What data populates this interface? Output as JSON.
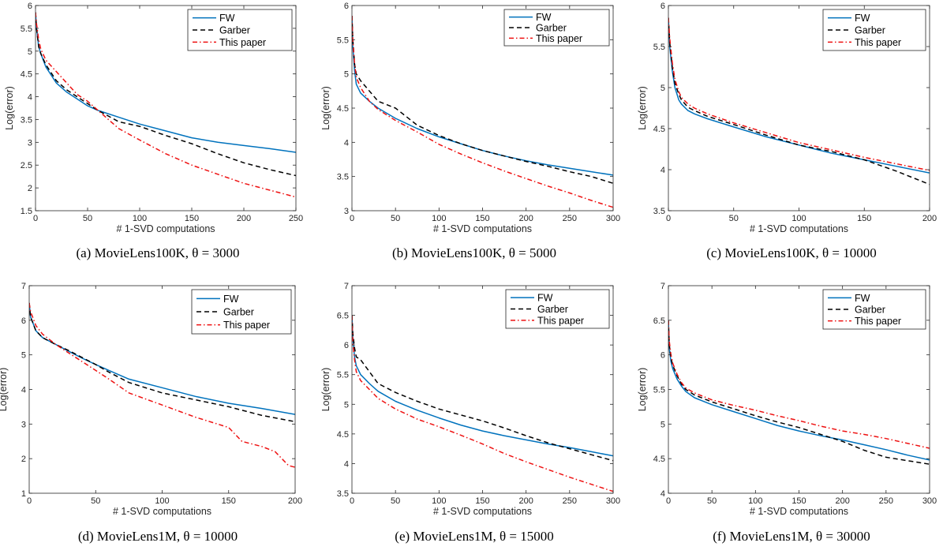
{
  "figure_captions": [
    "(a) MovieLens100K, θ = 3000",
    "(b) MovieLens100K, θ = 5000",
    "(c) MovieLens100K, θ = 10000",
    "(d) MovieLens1M, θ = 10000",
    "(e) MovieLens1M, θ = 15000",
    "(f) MovieLens1M, θ = 30000"
  ],
  "colors": {
    "FW": "#0072BD",
    "Garber": "#000000",
    "This paper": "#EE1111"
  },
  "chart_data": [
    {
      "type": "line",
      "caption": {
        "prefix": "(a) ",
        "name": "MovieLens100K",
        "theta": "3000"
      },
      "xlabel": "# 1-SVD computations",
      "ylabel": "Log(error)",
      "xlim": [
        0,
        250
      ],
      "ylim": [
        1.5,
        6
      ],
      "xticks": [
        0,
        50,
        100,
        150,
        200,
        250
      ],
      "yticks": [
        1.5,
        2,
        2.5,
        3,
        3.5,
        4,
        4.5,
        5,
        5.5,
        6
      ],
      "grid": false,
      "legend": "top-right",
      "series": [
        {
          "name": "FW",
          "style": "solid",
          "x": [
            0,
            1,
            3,
            5,
            10,
            20,
            30,
            40,
            50,
            60,
            80,
            100,
            125,
            150,
            175,
            200,
            225,
            250
          ],
          "y": [
            5.85,
            5.5,
            5.1,
            4.95,
            4.65,
            4.3,
            4.1,
            3.95,
            3.8,
            3.7,
            3.55,
            3.4,
            3.25,
            3.1,
            3.0,
            2.93,
            2.86,
            2.78
          ]
        },
        {
          "name": "Garber",
          "style": "dashed",
          "x": [
            0,
            1,
            3,
            5,
            10,
            20,
            30,
            40,
            50,
            60,
            80,
            100,
            125,
            150,
            175,
            200,
            225,
            250
          ],
          "y": [
            5.85,
            5.5,
            5.1,
            4.95,
            4.7,
            4.35,
            4.15,
            4.0,
            3.85,
            3.7,
            3.45,
            3.35,
            3.15,
            2.97,
            2.75,
            2.55,
            2.4,
            2.27
          ]
        },
        {
          "name": "This paper",
          "style": "dashdot",
          "x": [
            0,
            1,
            3,
            5,
            10,
            20,
            30,
            40,
            50,
            60,
            80,
            100,
            125,
            150,
            175,
            200,
            225,
            250
          ],
          "y": [
            5.85,
            5.6,
            5.25,
            5.05,
            4.8,
            4.55,
            4.3,
            4.05,
            3.9,
            3.7,
            3.3,
            3.05,
            2.75,
            2.5,
            2.3,
            2.1,
            1.95,
            1.8
          ]
        }
      ]
    },
    {
      "type": "line",
      "caption": {
        "prefix": "(b) ",
        "name": "MovieLens100K",
        "theta": "5000"
      },
      "xlabel": "# 1-SVD computations",
      "ylabel": "Log(error)",
      "xlim": [
        0,
        300
      ],
      "ylim": [
        3,
        6
      ],
      "xticks": [
        0,
        50,
        100,
        150,
        200,
        250,
        300
      ],
      "yticks": [
        3,
        3.5,
        4,
        4.5,
        5,
        5.5,
        6
      ],
      "grid": false,
      "legend": "top-right",
      "series": [
        {
          "name": "FW",
          "style": "solid",
          "x": [
            0,
            1,
            3,
            5,
            10,
            20,
            30,
            50,
            75,
            100,
            125,
            150,
            175,
            200,
            225,
            250,
            275,
            300
          ],
          "y": [
            5.85,
            5.4,
            5.05,
            4.85,
            4.72,
            4.6,
            4.5,
            4.35,
            4.2,
            4.08,
            3.98,
            3.88,
            3.8,
            3.73,
            3.67,
            3.62,
            3.57,
            3.52
          ]
        },
        {
          "name": "Garber",
          "style": "dashed",
          "x": [
            0,
            1,
            3,
            5,
            10,
            20,
            30,
            50,
            75,
            100,
            125,
            150,
            175,
            200,
            225,
            250,
            275,
            300
          ],
          "y": [
            5.85,
            5.5,
            5.15,
            5.0,
            4.9,
            4.75,
            4.6,
            4.5,
            4.25,
            4.1,
            3.98,
            3.88,
            3.8,
            3.72,
            3.65,
            3.57,
            3.5,
            3.4
          ]
        },
        {
          "name": "This paper",
          "style": "dashdot",
          "x": [
            0,
            1,
            3,
            5,
            10,
            20,
            30,
            50,
            75,
            100,
            125,
            150,
            175,
            200,
            225,
            250,
            275,
            300
          ],
          "y": [
            5.85,
            5.5,
            5.15,
            4.95,
            4.8,
            4.6,
            4.48,
            4.32,
            4.15,
            3.97,
            3.83,
            3.7,
            3.58,
            3.47,
            3.36,
            3.26,
            3.15,
            3.05
          ]
        }
      ]
    },
    {
      "type": "line",
      "caption": {
        "prefix": "(c) ",
        "name": "MovieLens100K",
        "theta": "10000"
      },
      "xlabel": "# 1-SVD computations",
      "ylabel": "Log(error)",
      "xlim": [
        0,
        200
      ],
      "ylim": [
        3.5,
        6
      ],
      "xticks": [
        0,
        50,
        100,
        150,
        200
      ],
      "yticks": [
        3.5,
        4,
        4.5,
        5,
        5.5,
        6
      ],
      "grid": false,
      "legend": "top-right",
      "series": [
        {
          "name": "FW",
          "style": "solid",
          "x": [
            0,
            1,
            3,
            5,
            8,
            10,
            15,
            20,
            30,
            50,
            75,
            100,
            125,
            150,
            175,
            200
          ],
          "y": [
            5.85,
            5.5,
            5.2,
            5.0,
            4.85,
            4.8,
            4.72,
            4.68,
            4.62,
            4.52,
            4.4,
            4.3,
            4.2,
            4.12,
            4.04,
            3.96
          ]
        },
        {
          "name": "Garber",
          "style": "dashed",
          "x": [
            0,
            1,
            3,
            5,
            8,
            10,
            15,
            20,
            30,
            50,
            75,
            100,
            125,
            150,
            175,
            200
          ],
          "y": [
            5.85,
            5.55,
            5.25,
            5.05,
            4.92,
            4.85,
            4.76,
            4.72,
            4.65,
            4.55,
            4.42,
            4.3,
            4.22,
            4.12,
            3.98,
            3.82
          ]
        },
        {
          "name": "This paper",
          "style": "dashdot",
          "x": [
            0,
            1,
            3,
            5,
            8,
            10,
            15,
            20,
            30,
            50,
            75,
            100,
            125,
            150,
            175,
            200
          ],
          "y": [
            5.85,
            5.6,
            5.3,
            5.1,
            4.95,
            4.88,
            4.8,
            4.75,
            4.68,
            4.57,
            4.45,
            4.33,
            4.24,
            4.15,
            4.07,
            3.99
          ]
        }
      ]
    },
    {
      "type": "line",
      "caption": {
        "prefix": "(d) ",
        "name": "MovieLens1M",
        "theta": "10000"
      },
      "xlabel": "# 1-SVD computations",
      "ylabel": "Log(error)",
      "xlim": [
        0,
        200
      ],
      "ylim": [
        1,
        7
      ],
      "xticks": [
        0,
        50,
        100,
        150,
        200
      ],
      "yticks": [
        1,
        2,
        3,
        4,
        5,
        6,
        7
      ],
      "grid": false,
      "legend": "top-right",
      "series": [
        {
          "name": "FW",
          "style": "solid",
          "x": [
            0,
            1,
            3,
            5,
            10,
            20,
            30,
            40,
            50,
            60,
            75,
            100,
            125,
            150,
            175,
            200
          ],
          "y": [
            6.5,
            6.1,
            5.9,
            5.7,
            5.5,
            5.3,
            5.1,
            4.9,
            4.72,
            4.55,
            4.3,
            4.05,
            3.8,
            3.6,
            3.45,
            3.28
          ]
        },
        {
          "name": "Garber",
          "style": "dashed",
          "x": [
            0,
            1,
            3,
            5,
            10,
            20,
            30,
            40,
            50,
            60,
            75,
            100,
            125,
            150,
            175,
            200
          ],
          "y": [
            6.5,
            6.1,
            5.9,
            5.7,
            5.5,
            5.3,
            5.12,
            4.92,
            4.72,
            4.5,
            4.2,
            3.9,
            3.7,
            3.5,
            3.25,
            3.07
          ]
        },
        {
          "name": "This paper",
          "style": "dashdot",
          "x": [
            0,
            1,
            3,
            5,
            10,
            20,
            30,
            40,
            50,
            60,
            75,
            100,
            125,
            150,
            160,
            175,
            185,
            195,
            200
          ],
          "y": [
            6.5,
            6.25,
            6.05,
            5.85,
            5.6,
            5.3,
            5.05,
            4.8,
            4.55,
            4.3,
            3.9,
            3.55,
            3.2,
            2.9,
            2.5,
            2.35,
            2.2,
            1.8,
            1.75
          ]
        }
      ]
    },
    {
      "type": "line",
      "caption": {
        "prefix": "(e) ",
        "name": "MovieLens1M",
        "theta": "15000"
      },
      "xlabel": "# 1-SVD computations",
      "ylabel": "Log(error)",
      "xlim": [
        0,
        300
      ],
      "ylim": [
        3.5,
        7
      ],
      "xticks": [
        0,
        50,
        100,
        150,
        200,
        250,
        300
      ],
      "yticks": [
        3.5,
        4,
        4.5,
        5,
        5.5,
        6,
        6.5,
        7
      ],
      "grid": false,
      "legend": "top-right",
      "series": [
        {
          "name": "FW",
          "style": "solid",
          "x": [
            0,
            1,
            3,
            5,
            10,
            20,
            30,
            50,
            75,
            100,
            125,
            150,
            175,
            200,
            225,
            250,
            275,
            300
          ],
          "y": [
            6.5,
            6.1,
            5.8,
            5.65,
            5.5,
            5.35,
            5.22,
            5.05,
            4.9,
            4.77,
            4.65,
            4.55,
            4.47,
            4.4,
            4.33,
            4.27,
            4.2,
            4.13
          ]
        },
        {
          "name": "Garber",
          "style": "dashed",
          "x": [
            0,
            1,
            3,
            5,
            10,
            20,
            30,
            50,
            75,
            100,
            125,
            150,
            175,
            200,
            225,
            250,
            275,
            300
          ],
          "y": [
            6.5,
            6.2,
            5.95,
            5.8,
            5.75,
            5.55,
            5.35,
            5.2,
            5.05,
            4.92,
            4.82,
            4.72,
            4.6,
            4.47,
            4.35,
            4.25,
            4.15,
            4.05
          ]
        },
        {
          "name": "This paper",
          "style": "dashdot",
          "x": [
            0,
            1,
            3,
            5,
            10,
            20,
            30,
            50,
            75,
            100,
            125,
            150,
            175,
            200,
            225,
            250,
            275,
            300
          ],
          "y": [
            6.5,
            6.05,
            5.75,
            5.55,
            5.4,
            5.25,
            5.1,
            4.92,
            4.75,
            4.62,
            4.48,
            4.33,
            4.17,
            4.03,
            3.9,
            3.77,
            3.65,
            3.53
          ]
        }
      ]
    },
    {
      "type": "line",
      "caption": {
        "prefix": "(f) ",
        "name": "MovieLens1M",
        "theta": "30000"
      },
      "xlabel": "# 1-SVD computations",
      "ylabel": "Log(error)",
      "xlim": [
        0,
        300
      ],
      "ylim": [
        4,
        7
      ],
      "xticks": [
        0,
        50,
        100,
        150,
        200,
        250,
        300
      ],
      "yticks": [
        4,
        4.5,
        5,
        5.5,
        6,
        6.5,
        7
      ],
      "grid": false,
      "legend": "top-right",
      "series": [
        {
          "name": "FW",
          "style": "solid",
          "x": [
            0,
            1,
            3,
            5,
            10,
            15,
            20,
            30,
            50,
            75,
            100,
            125,
            150,
            175,
            200,
            225,
            250,
            275,
            300
          ],
          "y": [
            6.5,
            6.1,
            5.9,
            5.8,
            5.65,
            5.55,
            5.47,
            5.38,
            5.28,
            5.18,
            5.08,
            4.98,
            4.9,
            4.83,
            4.77,
            4.7,
            4.63,
            4.55,
            4.48
          ]
        },
        {
          "name": "Garber",
          "style": "dashed",
          "x": [
            0,
            1,
            3,
            5,
            10,
            15,
            20,
            30,
            50,
            75,
            100,
            125,
            150,
            175,
            200,
            225,
            250,
            275,
            300
          ],
          "y": [
            6.5,
            6.15,
            5.95,
            5.85,
            5.7,
            5.58,
            5.5,
            5.42,
            5.32,
            5.22,
            5.12,
            5.03,
            4.95,
            4.85,
            4.75,
            4.62,
            4.52,
            4.47,
            4.42
          ]
        },
        {
          "name": "This paper",
          "style": "dashdot",
          "x": [
            0,
            1,
            3,
            5,
            10,
            15,
            20,
            30,
            50,
            75,
            100,
            125,
            150,
            175,
            200,
            225,
            250,
            275,
            300
          ],
          "y": [
            6.5,
            6.2,
            6.0,
            5.88,
            5.72,
            5.6,
            5.52,
            5.45,
            5.35,
            5.27,
            5.2,
            5.12,
            5.05,
            4.97,
            4.9,
            4.85,
            4.79,
            4.72,
            4.65
          ]
        }
      ]
    }
  ]
}
